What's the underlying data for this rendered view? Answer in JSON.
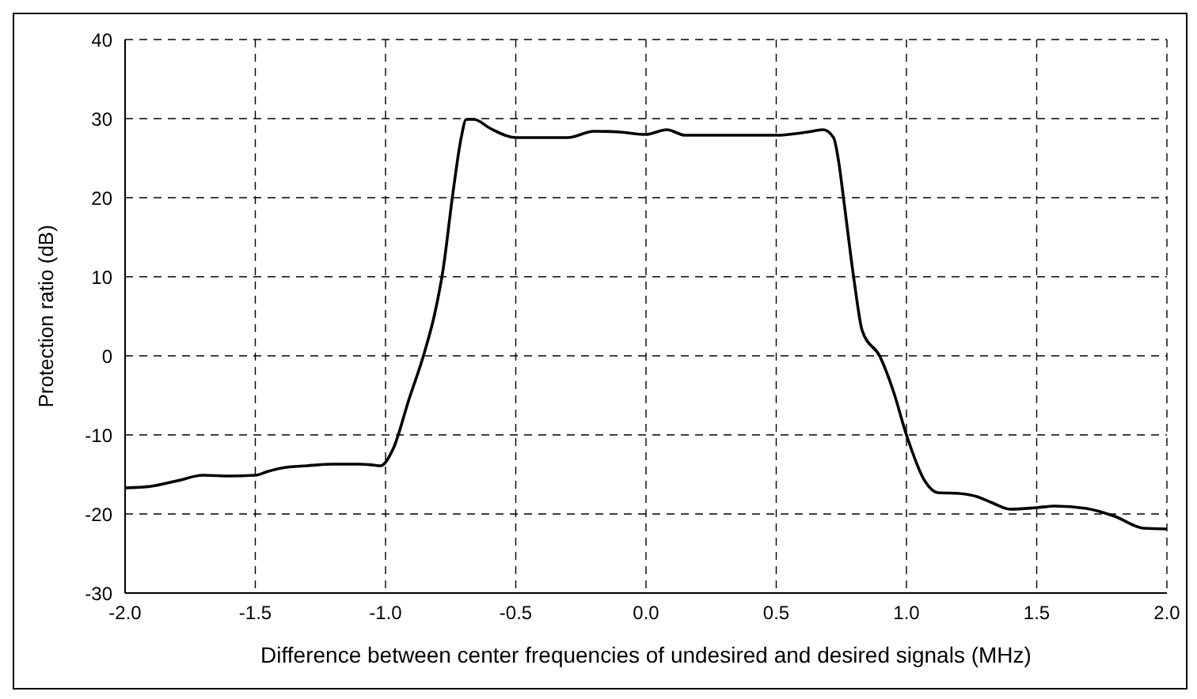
{
  "chart_data": {
    "type": "line",
    "xlabel": "Difference between center frequencies of undesired and desired signals (MHz)",
    "ylabel": "Protection ratio (dB)",
    "x": [
      -2.0,
      -1.9,
      -1.8,
      -1.7,
      -1.6,
      -1.5,
      -1.45,
      -1.4,
      -1.3,
      -1.2,
      -1.1,
      -1.05,
      -1.02,
      -0.97,
      -0.91,
      -0.85,
      -0.81,
      -0.78,
      -0.74,
      -0.71,
      -0.69,
      -0.66,
      -0.6,
      -0.5,
      -0.4,
      -0.3,
      -0.2,
      -0.1,
      0.0,
      0.08,
      0.15,
      0.3,
      0.5,
      0.62,
      0.68,
      0.72,
      0.74,
      0.76,
      0.8,
      0.83,
      0.9,
      0.95,
      1.0,
      1.07,
      1.12,
      1.2,
      1.27,
      1.33,
      1.4,
      1.5,
      1.57,
      1.69,
      1.8,
      1.91,
      2.0
    ],
    "series": [
      {
        "color": "#000000",
        "values": [
          -16.7,
          -16.5,
          -15.8,
          -15.1,
          -15.2,
          -15.1,
          -14.6,
          -14.2,
          -13.9,
          -13.7,
          -13.7,
          -13.8,
          -13.9,
          -11.7,
          -5.5,
          0.5,
          5.5,
          10.7,
          20.9,
          27.5,
          29.9,
          29.9,
          28.8,
          27.6,
          27.6,
          27.6,
          28.4,
          28.3,
          28.0,
          28.6,
          27.9,
          27.9,
          27.9,
          28.3,
          28.6,
          27.6,
          24.5,
          19.5,
          9.3,
          3.2,
          -0.2,
          -4.5,
          -10.0,
          -15.8,
          -17.3,
          -17.4,
          -17.8,
          -18.6,
          -19.4,
          -19.2,
          -19.0,
          -19.3,
          -20.3,
          -21.8,
          -21.9
        ]
      }
    ],
    "xlim": [
      -2.0,
      2.0
    ],
    "xticks": [
      {
        "value": -2,
        "label": "-2.0"
      },
      {
        "value": -1.5,
        "label": "-1.5"
      },
      {
        "value": -1,
        "label": "-1.0"
      },
      {
        "value": -0.5,
        "label": "-0.5"
      },
      {
        "value": 0,
        "label": "0.0"
      },
      {
        "value": 0.5,
        "label": "0.5"
      },
      {
        "value": 1,
        "label": "1.0"
      },
      {
        "value": 1.5,
        "label": "1.5"
      },
      {
        "value": 2,
        "label": "2.0"
      }
    ],
    "ylim": [
      -30,
      40
    ],
    "yticks": [
      -30,
      -20,
      -10,
      0,
      10,
      20,
      30,
      40
    ],
    "grid": true,
    "marker": "none",
    "line_style": "solid"
  }
}
